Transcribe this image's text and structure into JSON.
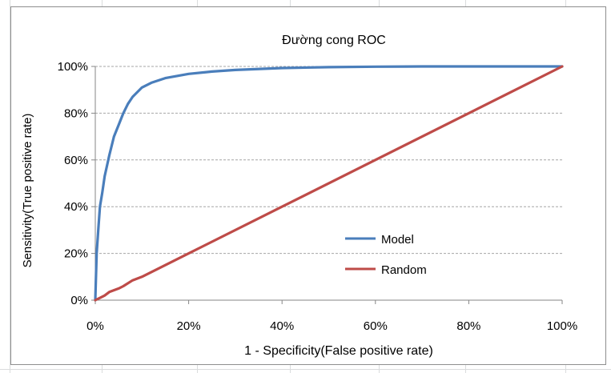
{
  "chart_data": {
    "type": "line",
    "title": "Đường cong ROC",
    "xlabel": "1 - Specificity(False positive rate)",
    "ylabel": "Sensitivity(True positive rate)",
    "xlim": [
      0,
      100
    ],
    "ylim": [
      0,
      100
    ],
    "x_ticks": [
      "0%",
      "20%",
      "40%",
      "60%",
      "80%",
      "100%"
    ],
    "y_ticks": [
      "0%",
      "20%",
      "40%",
      "60%",
      "80%",
      "100%"
    ],
    "legend_position": "center-right",
    "gridlines": "horizontal dashed",
    "series": [
      {
        "name": "Model",
        "color": "#4a7ebb",
        "points": [
          [
            0,
            0
          ],
          [
            0.3,
            20
          ],
          [
            0.7,
            32
          ],
          [
            1,
            40
          ],
          [
            1.5,
            46
          ],
          [
            2,
            53
          ],
          [
            3,
            62
          ],
          [
            4,
            70
          ],
          [
            5,
            75
          ],
          [
            6,
            80
          ],
          [
            7,
            84
          ],
          [
            8,
            87
          ],
          [
            10,
            91
          ],
          [
            12,
            93
          ],
          [
            15,
            95
          ],
          [
            20,
            96.8
          ],
          [
            25,
            97.8
          ],
          [
            30,
            98.5
          ],
          [
            40,
            99.3
          ],
          [
            50,
            99.7
          ],
          [
            60,
            99.9
          ],
          [
            70,
            100
          ],
          [
            80,
            100
          ],
          [
            90,
            100
          ],
          [
            100,
            100
          ]
        ]
      },
      {
        "name": "Random",
        "color": "#be4b48",
        "points": [
          [
            0,
            0
          ],
          [
            2,
            2
          ],
          [
            3,
            3.5
          ],
          [
            5,
            5
          ],
          [
            6,
            6
          ],
          [
            8,
            8.5
          ],
          [
            10,
            10
          ],
          [
            20,
            20
          ],
          [
            40,
            40
          ],
          [
            60,
            60
          ],
          [
            80,
            80
          ],
          [
            100,
            100
          ]
        ]
      }
    ]
  }
}
